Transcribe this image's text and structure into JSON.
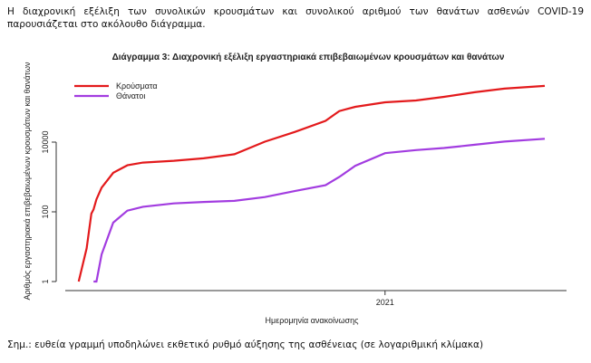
{
  "paragraph": "Η διαχρονική εξέλιξη των συνολικών κρουσμάτων και συνολικού αριθμού των θανάτων ασθενών COVID-19 παρουσιάζεται στο ακόλουθο διάγραμμα.",
  "chart_data": {
    "type": "line",
    "title": "Διάγραμμα 3: Διαχρονική εξέλιξη εργαστηριακά επιβεβαιωμένων κρουσμάτων και θανάτων",
    "x_label": "Ημερομηνία ανακοίνωσης",
    "y_label": "Αριθμός εργαστηριακά επιβεβαιωμένων κρουσμάτων και θανάτων",
    "x": [
      2020.156,
      2020.178,
      2020.191,
      2020.197,
      2020.205,
      2020.219,
      2020.251,
      2020.29,
      2020.333,
      2020.418,
      2020.5,
      2020.585,
      2020.669,
      2020.751,
      2020.836,
      2020.874,
      2020.918,
      2021.0,
      2021.085,
      2021.162,
      2021.247,
      2021.329,
      2021.44
    ],
    "series": [
      {
        "name": "Κρούσματα",
        "color": "#e31a1c",
        "values": [
          1,
          9,
          89,
          117,
          228,
          495,
          1314,
          2170,
          2591,
          2918,
          3432,
          4477,
          10317,
          19613,
          40929,
          78000,
          103034,
          138850,
          156413,
          199000,
          270000,
          343000,
          410000
        ]
      },
      {
        "name": "Θάνατοι",
        "color": "#a23ce0",
        "values": [
          null,
          null,
          null,
          1,
          1,
          6,
          49,
          108,
          140,
          175,
          192,
          206,
          266,
          393,
          581,
          1000,
          2102,
          4838,
          5913,
          6800,
          8400,
          10400,
          12500
        ]
      }
    ],
    "xlim": [
      2020.094,
      2021.5
    ],
    "xticks": [
      2021
    ],
    "ylim": [
      0.55,
      1350000
    ],
    "yticks": [
      1,
      100,
      10000
    ],
    "log_scale": true,
    "legend": "upper left"
  },
  "note": "Σημ.: ευθεία γραμμή υποδηλώνει εκθετικό ρυθμό αύξησης της ασθένειας (σε λογαριθμική κλίμακα)"
}
